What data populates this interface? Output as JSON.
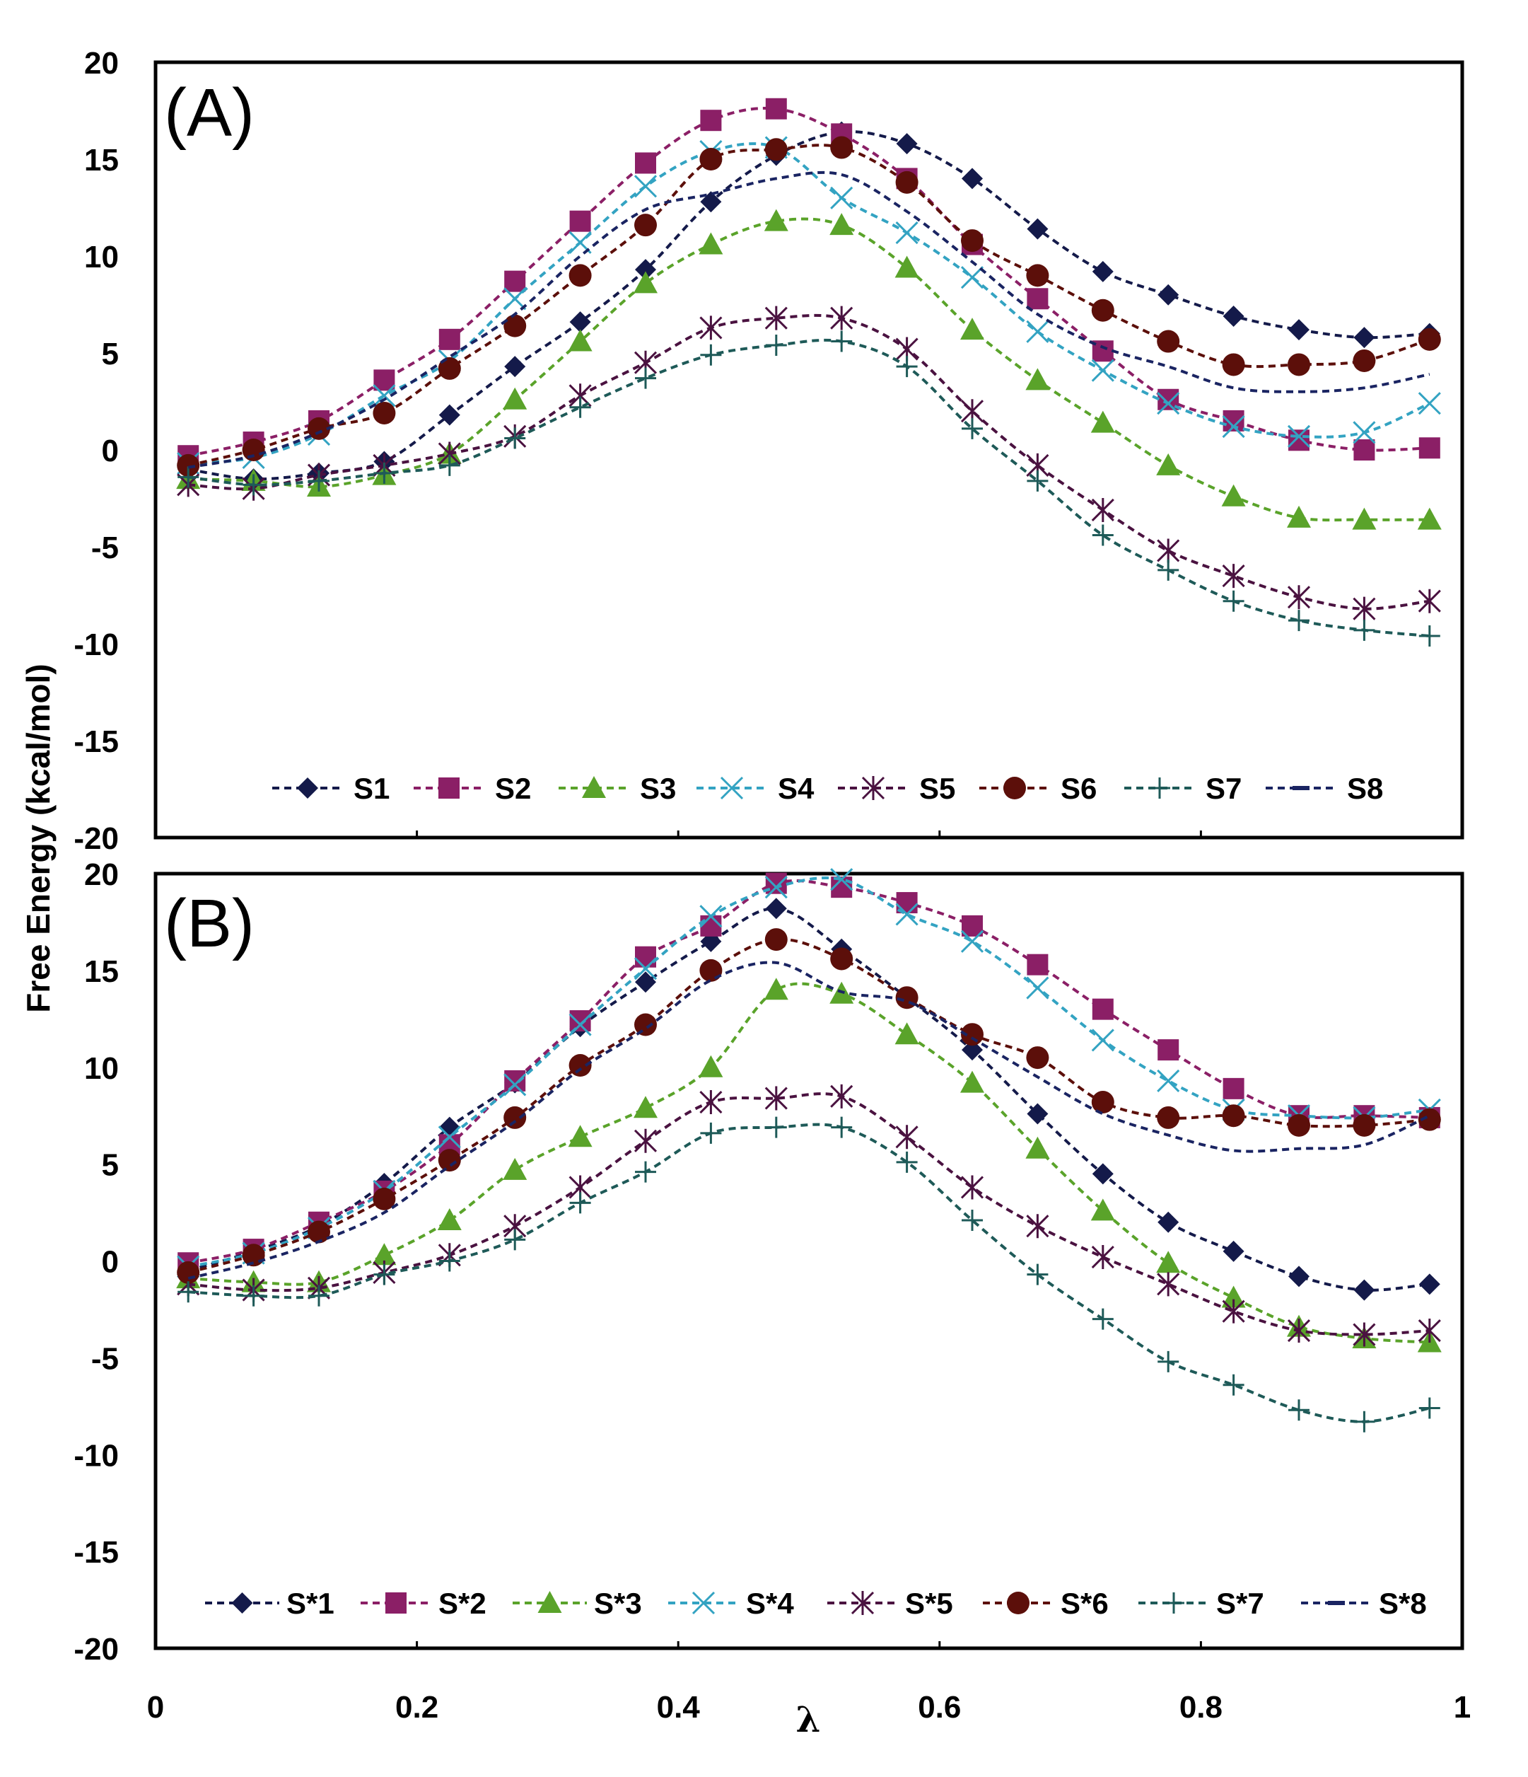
{
  "chart_data": [
    {
      "type": "line",
      "panel_label": "(A)",
      "ylabel": "Free Energy (kcal/mol)",
      "xlabel": "λ",
      "xlim": [
        0,
        1
      ],
      "ylim": [
        -20,
        20
      ],
      "xticks": [
        "0",
        "0.2",
        "0.4",
        "0.6",
        "0.8",
        "1"
      ],
      "yticks": [
        "20",
        "15",
        "10",
        "5",
        "0",
        "-5",
        "-10",
        "-15",
        "-20"
      ],
      "legend_position": "bottom",
      "x": [
        0.025,
        0.075,
        0.125,
        0.175,
        0.225,
        0.275,
        0.325,
        0.375,
        0.425,
        0.475,
        0.525,
        0.575,
        0.625,
        0.675,
        0.725,
        0.775,
        0.825,
        0.875,
        0.925,
        0.975
      ],
      "series": [
        {
          "name": "S1",
          "color": "#141a4a",
          "marker": "diamond",
          "values": [
            -1.0,
            -1.5,
            -1.2,
            -0.6,
            1.8,
            4.3,
            6.6,
            9.3,
            12.8,
            15.2,
            16.4,
            15.8,
            14.0,
            11.4,
            9.2,
            8.0,
            6.9,
            6.2,
            5.8,
            6.0
          ]
        },
        {
          "name": "S2",
          "color": "#8b1f66",
          "marker": "square",
          "values": [
            -0.3,
            0.4,
            1.5,
            3.6,
            5.7,
            8.7,
            11.8,
            14.8,
            17.0,
            17.6,
            16.3,
            14.0,
            10.6,
            7.8,
            5.1,
            2.6,
            1.5,
            0.5,
            0.0,
            0.1
          ]
        },
        {
          "name": "S3",
          "color": "#5aa32a",
          "marker": "triangle",
          "values": [
            -1.5,
            -1.6,
            -1.9,
            -1.3,
            -0.2,
            2.6,
            5.6,
            8.6,
            10.6,
            11.8,
            11.6,
            9.4,
            6.2,
            3.6,
            1.4,
            -0.8,
            -2.4,
            -3.5,
            -3.6,
            -3.6
          ]
        },
        {
          "name": "S4",
          "color": "#33a3c2",
          "marker": "x",
          "values": [
            -0.7,
            -0.4,
            0.8,
            2.8,
            4.6,
            7.8,
            10.7,
            13.6,
            15.4,
            15.6,
            13.0,
            11.2,
            8.9,
            6.1,
            4.1,
            2.4,
            1.2,
            0.7,
            0.9,
            2.4
          ]
        },
        {
          "name": "S5",
          "color": "#4a1240",
          "marker": "asterisk",
          "values": [
            -1.8,
            -2.0,
            -1.3,
            -0.8,
            -0.2,
            0.7,
            2.8,
            4.5,
            6.3,
            6.8,
            6.8,
            5.2,
            2.0,
            -0.8,
            -3.1,
            -5.2,
            -6.5,
            -7.6,
            -8.2,
            -7.8
          ]
        },
        {
          "name": "S6",
          "color": "#5c0f0a",
          "marker": "circle",
          "values": [
            -0.8,
            0.0,
            1.1,
            1.9,
            4.2,
            6.4,
            9.0,
            11.6,
            15.0,
            15.5,
            15.6,
            13.8,
            10.8,
            9.0,
            7.2,
            5.6,
            4.4,
            4.4,
            4.6,
            5.7
          ]
        },
        {
          "name": "S7",
          "color": "#1e5a58",
          "marker": "plus",
          "values": [
            -1.4,
            -1.8,
            -1.6,
            -1.2,
            -0.8,
            0.6,
            2.2,
            3.7,
            4.9,
            5.4,
            5.6,
            4.3,
            1.1,
            -1.6,
            -4.4,
            -6.2,
            -7.8,
            -8.8,
            -9.3,
            -9.6
          ]
        },
        {
          "name": "S8",
          "color": "#1a2462",
          "marker": "dash",
          "values": [
            -0.9,
            -0.3,
            0.9,
            2.6,
            4.8,
            7.0,
            10.0,
            12.4,
            13.2,
            14.0,
            14.2,
            12.3,
            9.7,
            7.0,
            5.3,
            4.3,
            3.2,
            3.0,
            3.2,
            3.9
          ]
        }
      ]
    },
    {
      "type": "line",
      "panel_label": "(B)",
      "ylabel": "Free Energy (kcal/mol)",
      "xlabel": "λ",
      "xlim": [
        0,
        1
      ],
      "ylim": [
        -20,
        20
      ],
      "xticks": [
        "0",
        "0.2",
        "0.4",
        "0.6",
        "0.8",
        "1"
      ],
      "yticks": [
        "20",
        "15",
        "10",
        "5",
        "0",
        "-5",
        "-10",
        "-15",
        "-20"
      ],
      "legend_position": "bottom",
      "x": [
        0.025,
        0.075,
        0.125,
        0.175,
        0.225,
        0.275,
        0.325,
        0.375,
        0.425,
        0.475,
        0.525,
        0.575,
        0.625,
        0.675,
        0.725,
        0.775,
        0.825,
        0.875,
        0.925,
        0.975
      ],
      "series": [
        {
          "name": "S*1",
          "color": "#141a4a",
          "marker": "diamond",
          "values": [
            -0.5,
            0.5,
            1.8,
            4.0,
            6.9,
            9.2,
            12.1,
            14.4,
            16.5,
            18.2,
            16.1,
            13.6,
            10.9,
            7.6,
            4.5,
            2.0,
            0.5,
            -0.8,
            -1.5,
            -1.2
          ]
        },
        {
          "name": "S*2",
          "color": "#8b1f66",
          "marker": "square",
          "values": [
            -0.1,
            0.6,
            2.0,
            3.6,
            6.0,
            9.3,
            12.4,
            15.7,
            17.3,
            19.5,
            19.3,
            18.5,
            17.3,
            15.3,
            13.0,
            10.9,
            8.9,
            7.5,
            7.5,
            7.4
          ]
        },
        {
          "name": "S*3",
          "color": "#5aa32a",
          "marker": "triangle",
          "values": [
            -0.9,
            -1.1,
            -1.1,
            0.3,
            2.1,
            4.7,
            6.4,
            7.9,
            10.0,
            14.0,
            13.8,
            11.7,
            9.2,
            5.8,
            2.6,
            -0.1,
            -1.9,
            -3.4,
            -4.0,
            -4.2
          ]
        },
        {
          "name": "S*4",
          "color": "#33a3c2",
          "marker": "x",
          "values": [
            -0.3,
            0.4,
            1.7,
            3.6,
            6.4,
            9.1,
            12.2,
            15.1,
            17.8,
            19.3,
            19.7,
            17.9,
            16.5,
            14.1,
            11.4,
            9.3,
            7.8,
            7.5,
            7.4,
            7.8
          ]
        },
        {
          "name": "S*5",
          "color": "#4a1240",
          "marker": "asterisk",
          "values": [
            -1.2,
            -1.5,
            -1.4,
            -0.6,
            0.3,
            1.8,
            3.8,
            6.2,
            8.2,
            8.4,
            8.5,
            6.4,
            3.8,
            1.8,
            0.2,
            -1.2,
            -2.6,
            -3.6,
            -3.8,
            -3.6
          ]
        },
        {
          "name": "S*6",
          "color": "#5c0f0a",
          "marker": "circle",
          "values": [
            -0.6,
            0.3,
            1.5,
            3.2,
            5.2,
            7.4,
            10.1,
            12.2,
            15.0,
            16.6,
            15.6,
            13.6,
            11.7,
            10.5,
            8.2,
            7.4,
            7.5,
            7.0,
            7.0,
            7.3
          ]
        },
        {
          "name": "S*7",
          "color": "#1e5a58",
          "marker": "plus",
          "values": [
            -1.6,
            -1.8,
            -1.8,
            -0.7,
            0.0,
            1.1,
            3.0,
            4.6,
            6.6,
            6.9,
            6.9,
            5.1,
            2.1,
            -0.7,
            -3.0,
            -5.2,
            -6.4,
            -7.7,
            -8.3,
            -7.6
          ]
        },
        {
          "name": "S*8",
          "color": "#1a2462",
          "marker": "dash",
          "values": [
            -0.9,
            -0.1,
            1.0,
            2.5,
            4.9,
            7.2,
            9.9,
            12.0,
            14.5,
            15.4,
            13.9,
            13.4,
            11.5,
            9.5,
            7.6,
            6.5,
            5.7,
            5.8,
            6.0,
            7.5
          ]
        }
      ]
    }
  ]
}
